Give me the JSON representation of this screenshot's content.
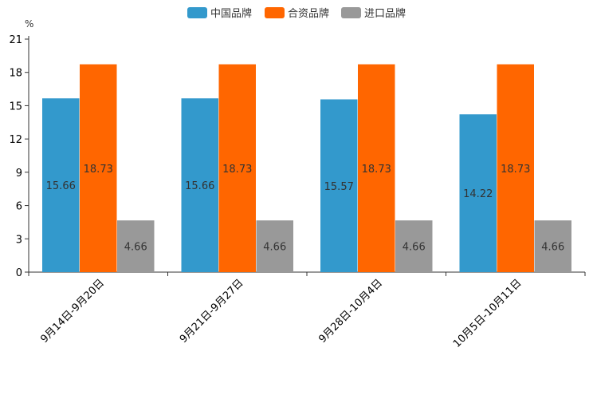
{
  "chart_data": {
    "type": "bar",
    "title": "",
    "ylabel": "%",
    "xlabel": "",
    "ylim": [
      0,
      21
    ],
    "yticks": [
      0,
      3,
      6,
      9,
      12,
      15,
      18,
      21
    ],
    "categories": [
      "9月14日-9月20日",
      "9月21日-9月27日",
      "9月28日-10月4日",
      "10月5日-10月11日"
    ],
    "series": [
      {
        "name": "中国品牌",
        "color": "#3399cc",
        "values": [
          15.66,
          15.66,
          15.57,
          14.22
        ]
      },
      {
        "name": "合资品牌",
        "color": "#ff6600",
        "values": [
          18.73,
          18.73,
          18.73,
          18.73
        ]
      },
      {
        "name": "进口品牌",
        "color": "#999999",
        "values": [
          4.66,
          4.66,
          4.66,
          4.66
        ]
      }
    ],
    "legend_position": "top-center",
    "label_color": "#333333"
  }
}
